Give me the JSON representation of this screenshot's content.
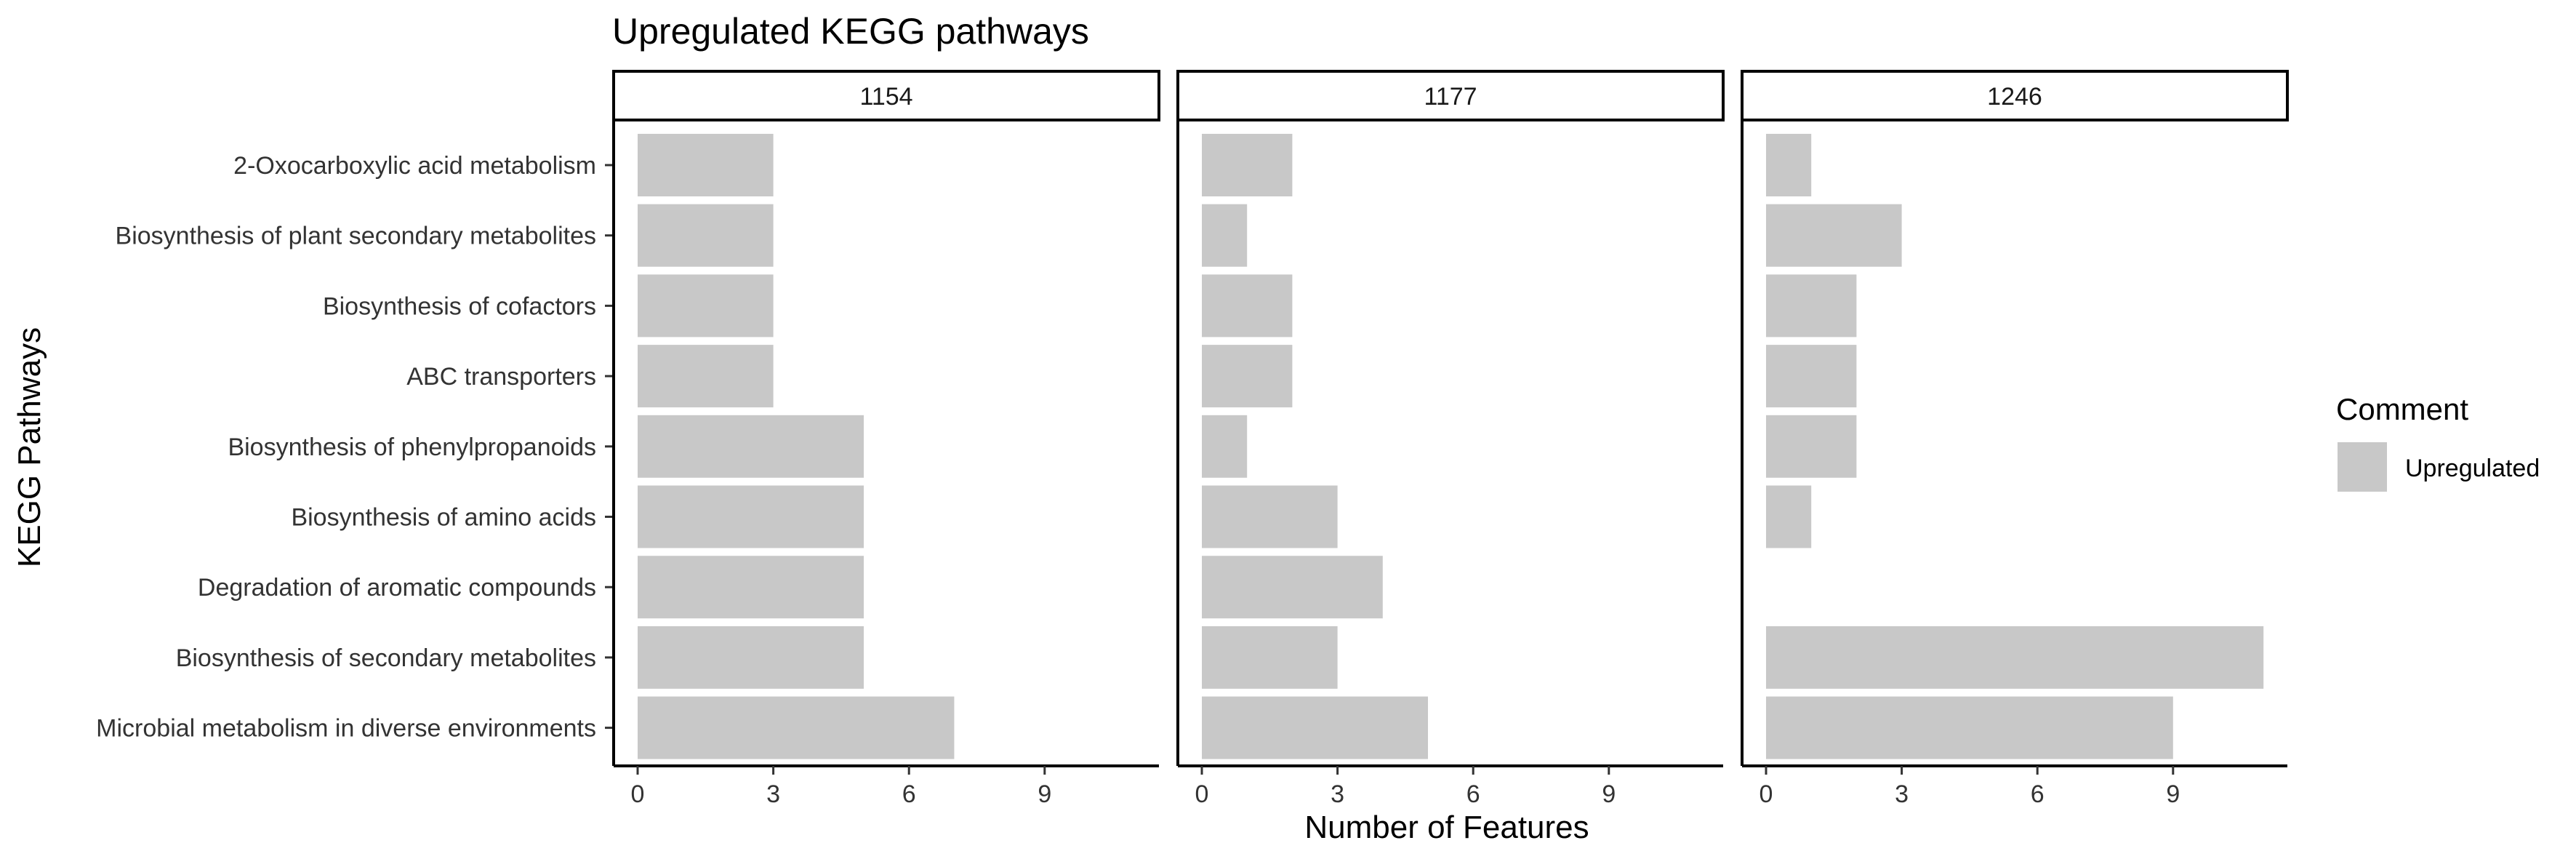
{
  "chart_data": {
    "type": "bar",
    "orientation": "horizontal",
    "faceted": true,
    "title": "Upregulated KEGG pathways",
    "xlabel": "Number of Features",
    "ylabel": "KEGG Pathways",
    "xlim": [
      0,
      11.5
    ],
    "xticks": [
      "0",
      "3",
      "6",
      "9"
    ],
    "grid": false,
    "categories": [
      "2-Oxocarboxylic acid metabolism",
      "Biosynthesis of plant secondary metabolites",
      "Biosynthesis of cofactors",
      "ABC transporters",
      "Biosynthesis of phenylpropanoids",
      "Biosynthesis of amino acids",
      "Degradation of aromatic compounds",
      "Biosynthesis of secondary metabolites",
      "Microbial metabolism in diverse environments"
    ],
    "panels": [
      {
        "label": "1154",
        "values": [
          3,
          3,
          3,
          3,
          5,
          5,
          5,
          5,
          7
        ]
      },
      {
        "label": "1177",
        "values": [
          2,
          1,
          2,
          2,
          1,
          3,
          4,
          3,
          5
        ]
      },
      {
        "label": "1246",
        "values": [
          1,
          3,
          2,
          2,
          2,
          1,
          0,
          11,
          9
        ]
      }
    ],
    "legend": {
      "title": "Comment",
      "position": "right",
      "items": [
        {
          "label": "Upregulated",
          "color": "#c8c8c8"
        }
      ]
    },
    "colors": {
      "bar": "#c8c8c8",
      "axis": "#000000",
      "text": "#333333"
    }
  }
}
